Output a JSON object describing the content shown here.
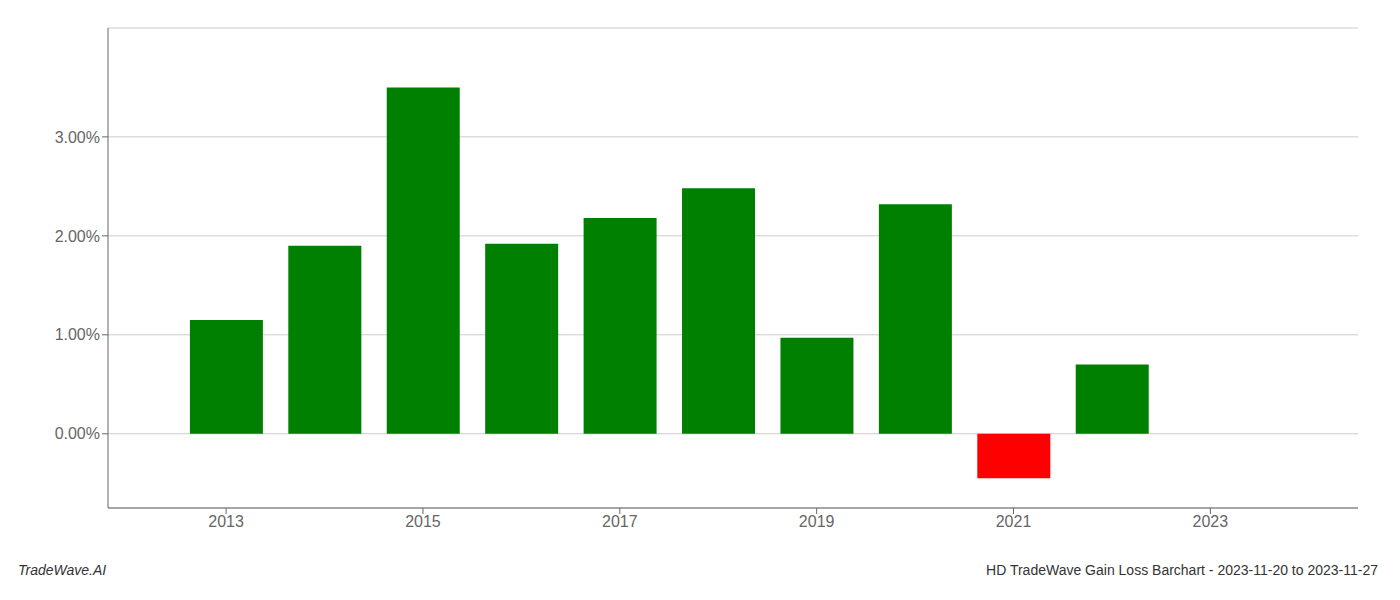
{
  "chart_data": {
    "type": "bar",
    "title": "HD TradeWave Gain Loss Barchart - 2023-11-20 to 2023-11-27",
    "annotations": [
      "TradeWave.AI"
    ],
    "x": [
      2013,
      2014,
      2015,
      2016,
      2017,
      2018,
      2019,
      2020,
      2021,
      2022
    ],
    "values": [
      1.15,
      1.9,
      3.5,
      1.92,
      2.18,
      2.48,
      0.97,
      2.32,
      -0.45,
      0.7
    ],
    "colors": [
      "#008000",
      "#008000",
      "#008000",
      "#008000",
      "#008000",
      "#008000",
      "#008000",
      "#008000",
      "#ff0000",
      "#008000"
    ],
    "xlim": [
      2011.8,
      2024.5
    ],
    "xticks": [
      2013,
      2015,
      2017,
      2019,
      2021,
      2023
    ],
    "ylim": [
      -0.75,
      4.1
    ],
    "yticks": [
      {
        "value": 0.0,
        "label": "0.00%"
      },
      {
        "value": 1.0,
        "label": "1.00%"
      },
      {
        "value": 2.0,
        "label": "2.00%"
      },
      {
        "value": 3.0,
        "label": "3.00%"
      }
    ],
    "grid": true
  }
}
